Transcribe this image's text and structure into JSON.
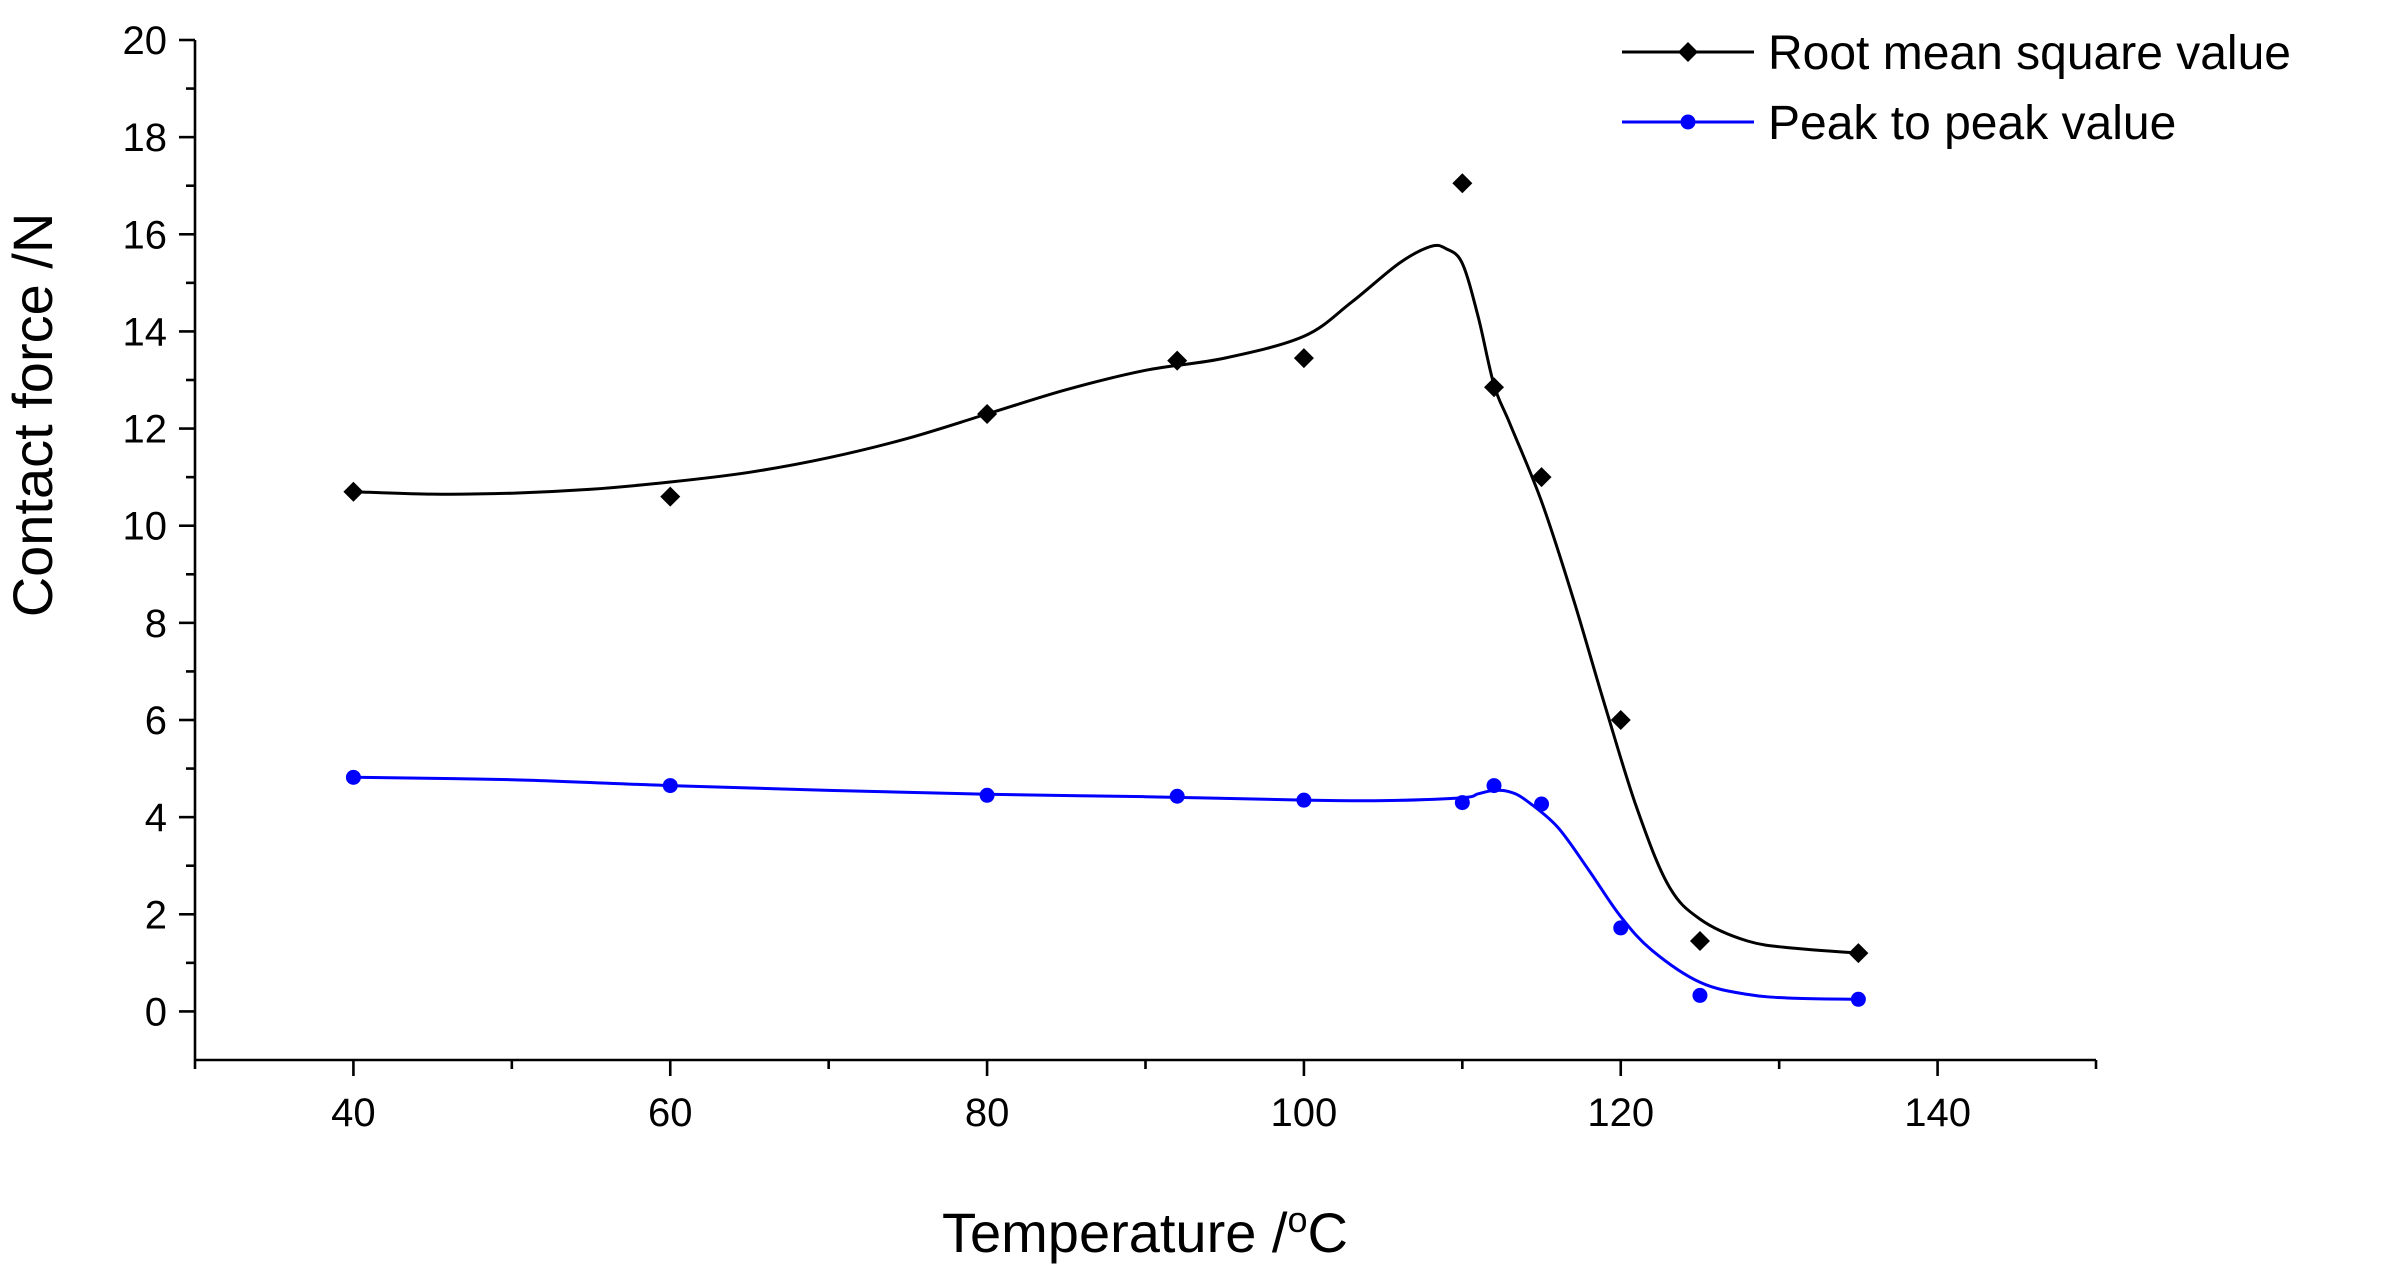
{
  "chart_data": {
    "type": "line",
    "title": "",
    "xlabel": "Temperature /",
    "xlabel_sup": "o",
    "xlabel_suffix": "C",
    "ylabel": "Contact force /N",
    "xlim": [
      30,
      150
    ],
    "ylim": [
      -1,
      20
    ],
    "x_ticks": [
      40,
      60,
      80,
      100,
      120,
      140
    ],
    "y_ticks": [
      0,
      2,
      4,
      6,
      8,
      10,
      12,
      14,
      16,
      18,
      20
    ],
    "x_tick_labels": [
      "40",
      "60",
      "80",
      "100",
      "120",
      "140"
    ],
    "y_tick_labels": [
      "0",
      "2",
      "4",
      "6",
      "8",
      "10",
      "12",
      "14",
      "16",
      "18",
      "20"
    ],
    "legend_position": "top-right",
    "series": [
      {
        "name": "Root mean square value",
        "color": "#000000",
        "marker": "diamond",
        "x": [
          40,
          60,
          80,
          92,
          100,
          110,
          112,
          115,
          120,
          125,
          135
        ],
        "y": [
          10.7,
          10.6,
          12.3,
          13.4,
          13.45,
          17.05,
          12.85,
          11.0,
          6.0,
          1.45,
          1.2
        ],
        "fit_x": [
          40,
          45,
          50,
          55,
          60,
          65,
          70,
          75,
          80,
          85,
          90,
          95,
          100,
          103,
          106,
          108,
          109,
          110,
          111,
          112,
          113,
          115,
          117,
          119,
          121,
          123,
          125,
          128,
          131,
          135
        ],
        "fit_y": [
          10.7,
          10.65,
          10.67,
          10.75,
          10.9,
          11.1,
          11.4,
          11.8,
          12.3,
          12.8,
          13.2,
          13.45,
          13.9,
          14.6,
          15.4,
          15.75,
          15.7,
          15.4,
          14.3,
          12.9,
          12.1,
          10.5,
          8.5,
          6.3,
          4.2,
          2.6,
          1.9,
          1.45,
          1.3,
          1.2
        ]
      },
      {
        "name": "Peak to peak value",
        "color": "#0000ff",
        "marker": "circle",
        "x": [
          40,
          60,
          80,
          92,
          100,
          110,
          112,
          115,
          120,
          125,
          135
        ],
        "y": [
          4.82,
          4.65,
          4.45,
          4.43,
          4.35,
          4.3,
          4.65,
          4.27,
          1.72,
          0.33,
          0.25
        ],
        "fit_x": [
          40,
          50,
          60,
          70,
          80,
          90,
          100,
          105,
          110,
          111,
          112,
          113,
          114,
          116,
          118,
          120,
          122,
          125,
          128,
          131,
          135
        ],
        "fit_y": [
          4.82,
          4.77,
          4.65,
          4.55,
          4.47,
          4.42,
          4.35,
          4.34,
          4.4,
          4.48,
          4.55,
          4.52,
          4.35,
          3.8,
          2.9,
          1.95,
          1.25,
          0.6,
          0.35,
          0.27,
          0.25
        ]
      }
    ]
  }
}
